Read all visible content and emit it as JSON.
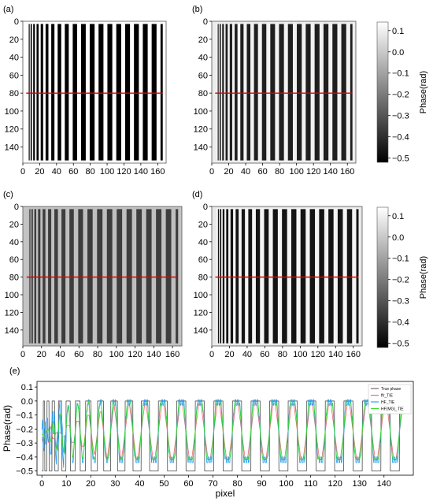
{
  "panel_labels": [
    "(a)",
    "(b)",
    "(c)",
    "(d)",
    "(e)"
  ],
  "chart_data": [
    {
      "panel": "(a)",
      "type": "heatmap",
      "xticks": [
        "0",
        "20",
        "40",
        "60",
        "80",
        "100",
        "120",
        "140",
        "160"
      ],
      "yticks": [
        "0",
        "20",
        "40",
        "60",
        "80",
        "100",
        "120",
        "140"
      ],
      "xlim": [
        0,
        170
      ],
      "ylim": [
        0,
        158
      ],
      "red_line_row": 80,
      "style": "ideal",
      "colors": {
        "bar": "#000000",
        "gap": "#ffffff",
        "border": "#ffffff"
      }
    },
    {
      "panel": "(b)",
      "type": "heatmap",
      "xticks": [
        "0",
        "20",
        "40",
        "60",
        "80",
        "100",
        "120",
        "140",
        "160"
      ],
      "yticks": [
        "0",
        "20",
        "40",
        "60",
        "80",
        "100",
        "120",
        "140"
      ],
      "xlim": [
        0,
        170
      ],
      "ylim": [
        0,
        158
      ],
      "red_line_row": 80,
      "style": "blurred",
      "colors": {
        "bar": "#0d0d0d",
        "gap": "#f2f2f2",
        "border": "#ececec"
      }
    },
    {
      "panel": "(c)",
      "type": "heatmap",
      "xticks": [
        "0",
        "20",
        "40",
        "60",
        "80",
        "100",
        "120",
        "140",
        "160"
      ],
      "yticks": [
        "0",
        "20",
        "40",
        "60",
        "80",
        "100",
        "120",
        "140"
      ],
      "xlim": [
        0,
        170
      ],
      "ylim": [
        0,
        158
      ],
      "red_line_row": 80,
      "style": "gray",
      "colors": {
        "bar": "#3d3d3d",
        "gap": "#bfbfbf",
        "border": "#c4c4c4"
      }
    },
    {
      "panel": "(d)",
      "type": "heatmap",
      "xticks": [
        "0",
        "20",
        "40",
        "60",
        "80",
        "100",
        "120",
        "140",
        "160"
      ],
      "yticks": [
        "0",
        "20",
        "40",
        "60",
        "80",
        "100",
        "120",
        "140"
      ],
      "xlim": [
        0,
        170
      ],
      "ylim": [
        0,
        158
      ],
      "red_line_row": 80,
      "style": "sharp",
      "colors": {
        "bar": "#141414",
        "gap": "#f4f4f4",
        "border": "#e8e8e8"
      }
    },
    {
      "panel": "colorbar",
      "type": "heatmap",
      "ylabel": "Phase(rad)",
      "ticks": [
        "0.1",
        "0.0",
        "−0.1",
        "−0.2",
        "−0.3",
        "−0.4",
        "−0.5"
      ],
      "range": [
        -0.52,
        0.14
      ]
    },
    {
      "panel": "(e)",
      "type": "line",
      "xlabel": "pixel",
      "ylabel": "Phase(rad)",
      "xticks": [
        "0",
        "10",
        "20",
        "30",
        "40",
        "50",
        "60",
        "70",
        "80",
        "90",
        "100",
        "110",
        "120",
        "130",
        "140"
      ],
      "yticks": [
        "0.1",
        "0.0",
        "−0.1",
        "−0.2",
        "−0.3",
        "−0.4",
        "−0.5"
      ],
      "xlim": [
        -2,
        152
      ],
      "ylim": [
        -0.53,
        0.14
      ],
      "legend_position": "top-right",
      "series": [
        {
          "name": "True phase",
          "color": "#606060"
        },
        {
          "name": "ffr_TIE",
          "color": "#e07070"
        },
        {
          "name": "HF_TIE",
          "color": "#1f9bf0"
        },
        {
          "name": "HF(MG)_TIE",
          "color": "#33dd22"
        }
      ]
    }
  ]
}
